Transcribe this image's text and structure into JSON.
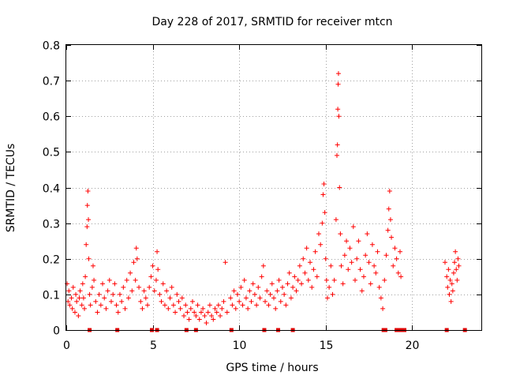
{
  "chart_data": {
    "type": "scatter",
    "title": "Day 228 of 2017, SRMTID for receiver mtcn",
    "xlabel": "GPS time / hours",
    "ylabel": "SRMTID / TECUs",
    "xlim": [
      0,
      24
    ],
    "ylim": [
      0,
      0.8
    ],
    "x_ticks": [
      0,
      5,
      10,
      15,
      20
    ],
    "y_ticks": [
      0,
      0.1,
      0.2,
      0.3,
      0.4,
      0.5,
      0.6,
      0.7,
      0.8
    ],
    "x_tick_labels": [
      "0",
      "5",
      "10",
      "15",
      "20"
    ],
    "y_tick_labels": [
      "0",
      "0.1",
      "0.2",
      "0.3",
      "0.4",
      "0.5",
      "0.6",
      "0.7",
      "0.8"
    ],
    "grid": true,
    "marker": "+",
    "series_color": "#ff0000",
    "baseline_marker_color": "#e00000",
    "series": [
      {
        "name": "SRMTID",
        "description": "dense scatter of '+' markers, approximated by representative points",
        "points": [
          [
            0.05,
            0.13
          ],
          [
            0.1,
            0.08
          ],
          [
            0.15,
            0.11
          ],
          [
            0.2,
            0.07
          ],
          [
            0.3,
            0.09
          ],
          [
            0.35,
            0.06
          ],
          [
            0.4,
            0.12
          ],
          [
            0.5,
            0.05
          ],
          [
            0.55,
            0.1
          ],
          [
            0.6,
            0.08
          ],
          [
            0.7,
            0.04
          ],
          [
            0.75,
            0.09
          ],
          [
            0.8,
            0.11
          ],
          [
            0.9,
            0.07
          ],
          [
            0.95,
            0.13
          ],
          [
            1.0,
            0.09
          ],
          [
            1.05,
            0.06
          ],
          [
            1.1,
            0.15
          ],
          [
            1.15,
            0.24
          ],
          [
            1.2,
            0.29
          ],
          [
            1.22,
            0.35
          ],
          [
            1.25,
            0.39
          ],
          [
            1.28,
            0.31
          ],
          [
            1.3,
            0.2
          ],
          [
            1.35,
            0.1
          ],
          [
            1.4,
            0.07
          ],
          [
            1.5,
            0.12
          ],
          [
            1.55,
            0.18
          ],
          [
            1.6,
            0.14
          ],
          [
            1.7,
            0.08
          ],
          [
            1.8,
            0.05
          ],
          [
            1.9,
            0.1
          ],
          [
            2.0,
            0.07
          ],
          [
            2.1,
            0.13
          ],
          [
            2.2,
            0.09
          ],
          [
            2.3,
            0.06
          ],
          [
            2.4,
            0.11
          ],
          [
            2.5,
            0.14
          ],
          [
            2.6,
            0.08
          ],
          [
            2.7,
            0.1
          ],
          [
            2.8,
            0.13
          ],
          [
            2.9,
            0.07
          ],
          [
            3.0,
            0.05
          ],
          [
            3.1,
            0.1
          ],
          [
            3.2,
            0.08
          ],
          [
            3.3,
            0.12
          ],
          [
            3.4,
            0.06
          ],
          [
            3.5,
            0.14
          ],
          [
            3.6,
            0.09
          ],
          [
            3.7,
            0.16
          ],
          [
            3.8,
            0.11
          ],
          [
            3.9,
            0.19
          ],
          [
            4.0,
            0.14
          ],
          [
            4.05,
            0.23
          ],
          [
            4.1,
            0.2
          ],
          [
            4.2,
            0.12
          ],
          [
            4.3,
            0.08
          ],
          [
            4.4,
            0.06
          ],
          [
            4.5,
            0.11
          ],
          [
            4.6,
            0.09
          ],
          [
            4.7,
            0.07
          ],
          [
            4.8,
            0.12
          ],
          [
            4.9,
            0.15
          ],
          [
            5.0,
            0.18
          ],
          [
            5.1,
            0.11
          ],
          [
            5.2,
            0.14
          ],
          [
            5.25,
            0.22
          ],
          [
            5.3,
            0.17
          ],
          [
            5.4,
            0.1
          ],
          [
            5.5,
            0.08
          ],
          [
            5.6,
            0.13
          ],
          [
            5.7,
            0.07
          ],
          [
            5.8,
            0.11
          ],
          [
            5.9,
            0.06
          ],
          [
            6.0,
            0.09
          ],
          [
            6.1,
            0.12
          ],
          [
            6.2,
            0.07
          ],
          [
            6.3,
            0.05
          ],
          [
            6.4,
            0.1
          ],
          [
            6.5,
            0.08
          ],
          [
            6.6,
            0.06
          ],
          [
            6.7,
            0.09
          ],
          [
            6.8,
            0.04
          ],
          [
            6.9,
            0.07
          ],
          [
            7.0,
            0.05
          ],
          [
            7.1,
            0.03
          ],
          [
            7.2,
            0.06
          ],
          [
            7.3,
            0.08
          ],
          [
            7.4,
            0.05
          ],
          [
            7.5,
            0.04
          ],
          [
            7.6,
            0.07
          ],
          [
            7.7,
            0.03
          ],
          [
            7.8,
            0.05
          ],
          [
            7.9,
            0.06
          ],
          [
            8.0,
            0.04
          ],
          [
            8.1,
            0.02
          ],
          [
            8.2,
            0.05
          ],
          [
            8.3,
            0.07
          ],
          [
            8.4,
            0.04
          ],
          [
            8.5,
            0.03
          ],
          [
            8.6,
            0.06
          ],
          [
            8.7,
            0.05
          ],
          [
            8.8,
            0.07
          ],
          [
            8.9,
            0.04
          ],
          [
            9.0,
            0.06
          ],
          [
            9.1,
            0.08
          ],
          [
            9.2,
            0.19
          ],
          [
            9.3,
            0.05
          ],
          [
            9.5,
            0.09
          ],
          [
            9.6,
            0.07
          ],
          [
            9.7,
            0.11
          ],
          [
            9.8,
            0.06
          ],
          [
            9.9,
            0.1
          ],
          [
            10.0,
            0.08
          ],
          [
            10.1,
            0.12
          ],
          [
            10.2,
            0.07
          ],
          [
            10.3,
            0.14
          ],
          [
            10.4,
            0.09
          ],
          [
            10.5,
            0.06
          ],
          [
            10.6,
            0.11
          ],
          [
            10.7,
            0.08
          ],
          [
            10.8,
            0.13
          ],
          [
            10.9,
            0.1
          ],
          [
            11.0,
            0.07
          ],
          [
            11.1,
            0.12
          ],
          [
            11.2,
            0.09
          ],
          [
            11.3,
            0.15
          ],
          [
            11.4,
            0.18
          ],
          [
            11.5,
            0.08
          ],
          [
            11.6,
            0.11
          ],
          [
            11.7,
            0.07
          ],
          [
            11.8,
            0.1
          ],
          [
            11.9,
            0.13
          ],
          [
            12.0,
            0.09
          ],
          [
            12.1,
            0.06
          ],
          [
            12.2,
            0.11
          ],
          [
            12.3,
            0.14
          ],
          [
            12.4,
            0.08
          ],
          [
            12.5,
            0.12
          ],
          [
            12.6,
            0.1
          ],
          [
            12.7,
            0.07
          ],
          [
            12.8,
            0.13
          ],
          [
            12.9,
            0.16
          ],
          [
            13.0,
            0.09
          ],
          [
            13.1,
            0.12
          ],
          [
            13.2,
            0.15
          ],
          [
            13.3,
            0.11
          ],
          [
            13.4,
            0.14
          ],
          [
            13.5,
            0.18
          ],
          [
            13.6,
            0.13
          ],
          [
            13.7,
            0.2
          ],
          [
            13.8,
            0.16
          ],
          [
            13.9,
            0.23
          ],
          [
            14.0,
            0.14
          ],
          [
            14.1,
            0.19
          ],
          [
            14.2,
            0.12
          ],
          [
            14.3,
            0.17
          ],
          [
            14.4,
            0.22
          ],
          [
            14.5,
            0.15
          ],
          [
            14.6,
            0.27
          ],
          [
            14.7,
            0.24
          ],
          [
            14.8,
            0.3
          ],
          [
            14.85,
            0.38
          ],
          [
            14.9,
            0.41
          ],
          [
            14.95,
            0.33
          ],
          [
            15.0,
            0.2
          ],
          [
            15.05,
            0.14
          ],
          [
            15.1,
            0.09
          ],
          [
            15.2,
            0.12
          ],
          [
            15.3,
            0.18
          ],
          [
            15.4,
            0.1
          ],
          [
            15.5,
            0.14
          ],
          [
            15.6,
            0.31
          ],
          [
            15.65,
            0.49
          ],
          [
            15.68,
            0.52
          ],
          [
            15.7,
            0.62
          ],
          [
            15.72,
            0.69
          ],
          [
            15.74,
            0.72
          ],
          [
            15.76,
            0.6
          ],
          [
            15.8,
            0.4
          ],
          [
            15.85,
            0.27
          ],
          [
            15.9,
            0.18
          ],
          [
            16.0,
            0.13
          ],
          [
            16.1,
            0.21
          ],
          [
            16.2,
            0.25
          ],
          [
            16.3,
            0.17
          ],
          [
            16.4,
            0.23
          ],
          [
            16.5,
            0.19
          ],
          [
            16.6,
            0.29
          ],
          [
            16.7,
            0.14
          ],
          [
            16.8,
            0.2
          ],
          [
            16.9,
            0.25
          ],
          [
            17.0,
            0.17
          ],
          [
            17.1,
            0.11
          ],
          [
            17.2,
            0.15
          ],
          [
            17.3,
            0.21
          ],
          [
            17.4,
            0.27
          ],
          [
            17.5,
            0.19
          ],
          [
            17.6,
            0.13
          ],
          [
            17.7,
            0.24
          ],
          [
            17.8,
            0.18
          ],
          [
            17.9,
            0.16
          ],
          [
            18.0,
            0.22
          ],
          [
            18.1,
            0.12
          ],
          [
            18.2,
            0.09
          ],
          [
            18.3,
            0.06
          ],
          [
            18.4,
            0.14
          ],
          [
            18.5,
            0.21
          ],
          [
            18.6,
            0.28
          ],
          [
            18.65,
            0.34
          ],
          [
            18.7,
            0.39
          ],
          [
            18.75,
            0.31
          ],
          [
            18.8,
            0.26
          ],
          [
            18.9,
            0.18
          ],
          [
            19.0,
            0.23
          ],
          [
            19.1,
            0.2
          ],
          [
            19.2,
            0.16
          ],
          [
            19.3,
            0.22
          ],
          [
            19.35,
            0.15
          ],
          [
            21.9,
            0.19
          ],
          [
            22.0,
            0.15
          ],
          [
            22.05,
            0.12
          ],
          [
            22.1,
            0.17
          ],
          [
            22.15,
            0.1
          ],
          [
            22.2,
            0.14
          ],
          [
            22.25,
            0.08
          ],
          [
            22.3,
            0.13
          ],
          [
            22.35,
            0.11
          ],
          [
            22.4,
            0.16
          ],
          [
            22.45,
            0.19
          ],
          [
            22.5,
            0.22
          ],
          [
            22.55,
            0.17
          ],
          [
            22.6,
            0.14
          ],
          [
            22.65,
            0.2
          ],
          [
            22.7,
            0.18
          ]
        ]
      }
    ],
    "baseline_markers_x": [
      1.35,
      2.95,
      4.95,
      5.25,
      6.95,
      7.5,
      9.55,
      11.45,
      12.25,
      13.1,
      18.35,
      18.45,
      19.1,
      19.25,
      19.4,
      19.55,
      22.0,
      23.05
    ]
  }
}
